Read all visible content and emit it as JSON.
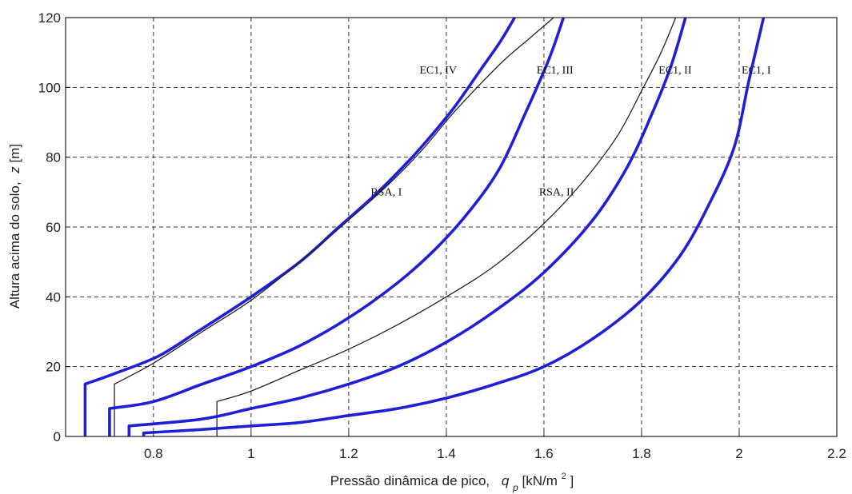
{
  "chart_data": {
    "type": "line",
    "title": "",
    "xlabel": "Pressão dinâmica de pico,",
    "xlabel_symbol": "q",
    "xlabel_subscript": "p",
    "xlabel_unit_prefix": " [kN/m",
    "xlabel_unit_sup": "2",
    "xlabel_unit_suffix": "]",
    "ylabel": "Altura acima do solo,",
    "ylabel_symbol": "z",
    "ylabel_unit": " [m]",
    "xlim": [
      0.62,
      2.2
    ],
    "ylim": [
      0,
      120
    ],
    "x_ticks": [
      0.8,
      1,
      1.2,
      1.4,
      1.6,
      1.8,
      2,
      2.2
    ],
    "x_tick_labels": [
      "0.8",
      "1",
      "1.2",
      "1.4",
      "1.6",
      "1.8",
      "2",
      "2.2"
    ],
    "y_ticks": [
      0,
      20,
      40,
      60,
      80,
      100,
      120
    ],
    "y_tick_labels": [
      "0",
      "20",
      "40",
      "60",
      "80",
      "100",
      "120"
    ],
    "grid": true,
    "legend": "none",
    "series": [
      {
        "name": "EC1, IV",
        "color": "#1f1fd6",
        "style": "thick",
        "x": [
          0.66,
          0.66,
          0.72,
          0.81,
          0.89,
          1.0,
          1.1,
          1.18,
          1.26,
          1.33,
          1.38,
          1.42,
          1.47,
          1.51,
          1.54
        ],
        "y": [
          0,
          15,
          18,
          23,
          30,
          40,
          50,
          60,
          70,
          80,
          88,
          95,
          105,
          113,
          120
        ]
      },
      {
        "name": "RSA, I",
        "color": "#222222",
        "style": "thin",
        "x": [
          0.72,
          0.72,
          0.8,
          0.9,
          1.0,
          1.1,
          1.2,
          1.28,
          1.35,
          1.41,
          1.47,
          1.52,
          1.57,
          1.62
        ],
        "y": [
          0,
          15,
          21,
          30,
          39,
          50,
          62,
          72,
          82,
          92,
          101,
          108,
          114,
          120
        ]
      },
      {
        "name": "EC1, III",
        "color": "#1f1fd6",
        "style": "thick",
        "x": [
          0.71,
          0.71,
          0.8,
          0.9,
          1.0,
          1.1,
          1.2,
          1.3,
          1.38,
          1.45,
          1.51,
          1.56,
          1.61,
          1.64
        ],
        "y": [
          0,
          8,
          10,
          15,
          20,
          26,
          34,
          44,
          54,
          65,
          77,
          92,
          108,
          120
        ]
      },
      {
        "name": "RSA, II",
        "color": "#222222",
        "style": "thin",
        "x": [
          0.93,
          0.93,
          1.0,
          1.1,
          1.2,
          1.3,
          1.4,
          1.5,
          1.6,
          1.68,
          1.75,
          1.8,
          1.84,
          1.87
        ],
        "y": [
          0,
          10,
          13,
          19,
          25,
          32,
          40,
          49,
          61,
          73,
          86,
          99,
          110,
          120
        ]
      },
      {
        "name": "EC1, II",
        "color": "#1f1fd6",
        "style": "thick",
        "x": [
          0.75,
          0.75,
          0.9,
          1.0,
          1.1,
          1.2,
          1.3,
          1.4,
          1.5,
          1.6,
          1.7,
          1.77,
          1.82,
          1.86,
          1.89
        ],
        "y": [
          0,
          3,
          5,
          8,
          11,
          15,
          20,
          27,
          36,
          47,
          62,
          77,
          92,
          106,
          120
        ]
      },
      {
        "name": "EC1, I",
        "color": "#1f1fd6",
        "style": "thick",
        "x": [
          0.78,
          0.78,
          0.9,
          1.0,
          1.1,
          1.2,
          1.3,
          1.4,
          1.5,
          1.6,
          1.7,
          1.8,
          1.88,
          1.94,
          1.99,
          2.02,
          2.05
        ],
        "y": [
          0,
          1,
          2,
          3,
          4,
          6,
          8,
          11,
          15,
          20,
          28,
          39,
          52,
          67,
          83,
          102,
          120
        ]
      }
    ],
    "annotations": [
      {
        "text": "EC1, IV",
        "x": 1.345,
        "y": 104
      },
      {
        "text": "EC1, III",
        "x": 1.585,
        "y": 104
      },
      {
        "text": "EC1, II",
        "x": 1.835,
        "y": 104
      },
      {
        "text": "EC1, I",
        "x": 2.005,
        "y": 104
      },
      {
        "text": "RSA, I",
        "x": 1.245,
        "y": 69
      },
      {
        "text": "RSA, II",
        "x": 1.59,
        "y": 69
      }
    ]
  }
}
